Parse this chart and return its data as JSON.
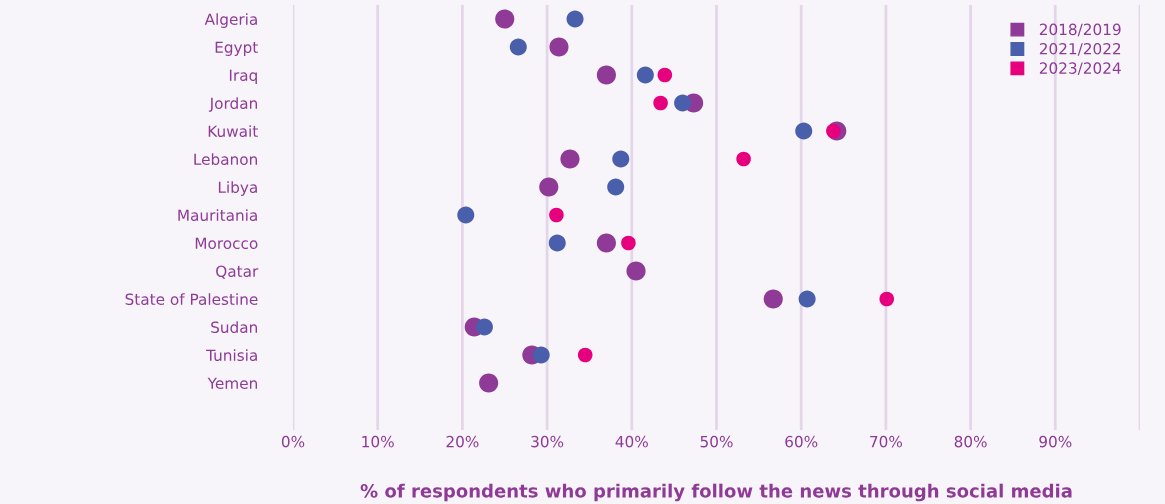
{
  "chart_data": {
    "type": "scatter",
    "xlabel": "% of respondents who primarily follow the news through social media",
    "categories": [
      "Algeria",
      "Egypt",
      "Iraq",
      "Jordan",
      "Kuwait",
      "Lebanon",
      "Libya",
      "Mauritania",
      "Morocco",
      "Qatar",
      "State of Palestine",
      "Sudan",
      "Tunisia",
      "Yemen"
    ],
    "series": [
      {
        "name": "2018/2019",
        "color": "#8e3a96",
        "values": [
          25,
          31.4,
          37,
          47.3,
          64.2,
          32.7,
          30.2,
          null,
          37,
          40.5,
          56.7,
          21.4,
          28.2,
          23.1
        ]
      },
      {
        "name": "2021/2022",
        "color": "#4a5fab",
        "values": [
          33.3,
          26.6,
          41.6,
          46,
          60.3,
          38.7,
          38.1,
          20.4,
          31.2,
          null,
          60.7,
          22.6,
          29.3,
          null
        ]
      },
      {
        "name": "2023/2024",
        "color": "#e6007e",
        "values": [
          null,
          null,
          43.9,
          43.4,
          63.8,
          53.2,
          null,
          31.1,
          39.6,
          null,
          70.1,
          null,
          34.5,
          null
        ]
      }
    ],
    "xlim": [
      0,
      100
    ],
    "xticks": [
      {
        "value": 0,
        "label": "0%"
      },
      {
        "value": 10,
        "label": "10%"
      },
      {
        "value": 20,
        "label": "20%"
      },
      {
        "value": 30,
        "label": "30%"
      },
      {
        "value": 40,
        "label": "40%"
      },
      {
        "value": 50,
        "label": "50%"
      },
      {
        "value": 60,
        "label": "60%"
      },
      {
        "value": 70,
        "label": "70%"
      },
      {
        "value": 80,
        "label": "80%"
      },
      {
        "value": 90,
        "label": "90%"
      },
      {
        "value": 100,
        "label": null
      }
    ],
    "orientation": "horizontal",
    "grid": "x",
    "legend": "top right",
    "marker": "circle"
  }
}
